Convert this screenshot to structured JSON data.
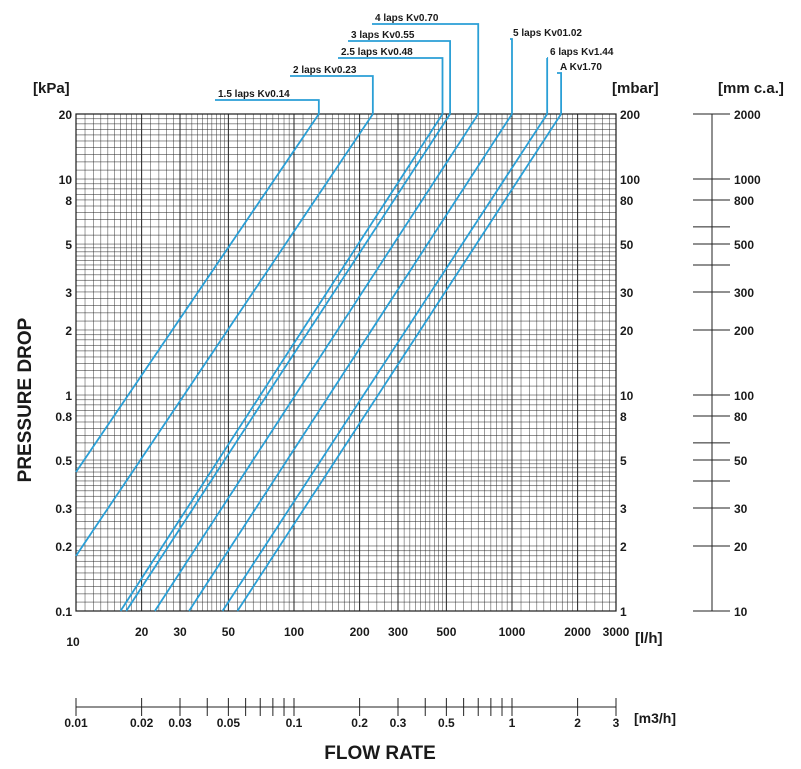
{
  "chart_data": {
    "type": "line",
    "x_scale": "log",
    "y_scale": "log",
    "xlim": [
      10,
      3000
    ],
    "ylim": [
      0.1,
      20
    ],
    "ylabel": "PRESSURE DROP",
    "xlabel": "FLOW RATE",
    "y_unit_left": "[kPa]",
    "y_unit_mid": "[mbar]",
    "y_unit_right": "[mm c.a.]",
    "x_unit": "[l/h]",
    "x2_unit": "[m3/h]",
    "grid": true,
    "line_color": "#2a9fd6",
    "x_ticks": [
      {
        "v": 10,
        "label": "10"
      },
      {
        "v": 20,
        "label": "20"
      },
      {
        "v": 30,
        "label": "30"
      },
      {
        "v": 50,
        "label": "50"
      },
      {
        "v": 100,
        "label": "100"
      },
      {
        "v": 200,
        "label": "200"
      },
      {
        "v": 300,
        "label": "300"
      },
      {
        "v": 500,
        "label": "500"
      },
      {
        "v": 1000,
        "label": "1000"
      },
      {
        "v": 2000,
        "label": "2000"
      },
      {
        "v": 3000,
        "label": "3000"
      }
    ],
    "y_ticks_kpa": [
      {
        "v": 20,
        "label": "20"
      },
      {
        "v": 10,
        "label": "10"
      },
      {
        "v": 8,
        "label": "8"
      },
      {
        "v": 5,
        "label": "5"
      },
      {
        "v": 3,
        "label": "3"
      },
      {
        "v": 2,
        "label": "2"
      },
      {
        "v": 1,
        "label": "1"
      },
      {
        "v": 0.8,
        "label": "0.8"
      },
      {
        "v": 0.5,
        "label": "0.5"
      },
      {
        "v": 0.3,
        "label": "0.3"
      },
      {
        "v": 0.2,
        "label": "0.2"
      },
      {
        "v": 0.1,
        "label": "0.1"
      }
    ],
    "y_ticks_mbar": [
      {
        "v": 20,
        "label": "200"
      },
      {
        "v": 10,
        "label": "100"
      },
      {
        "v": 8,
        "label": "80"
      },
      {
        "v": 5,
        "label": "50"
      },
      {
        "v": 3,
        "label": "30"
      },
      {
        "v": 2,
        "label": "20"
      },
      {
        "v": 1,
        "label": "10"
      },
      {
        "v": 0.8,
        "label": "8"
      },
      {
        "v": 0.5,
        "label": "5"
      },
      {
        "v": 0.3,
        "label": "3"
      },
      {
        "v": 0.2,
        "label": "2"
      },
      {
        "v": 0.1,
        "label": "1"
      }
    ],
    "y_ticks_mmca": [
      {
        "v": 20,
        "label": "2000"
      },
      {
        "v": 10,
        "label": "1000"
      },
      {
        "v": 8,
        "label": "800"
      },
      {
        "v": 5,
        "label": "500"
      },
      {
        "v": 3,
        "label": "300"
      },
      {
        "v": 2,
        "label": "200"
      },
      {
        "v": 1,
        "label": "100"
      },
      {
        "v": 0.8,
        "label": "80"
      },
      {
        "v": 0.5,
        "label": "50"
      },
      {
        "v": 0.3,
        "label": "30"
      },
      {
        "v": 0.2,
        "label": "20"
      },
      {
        "v": 0.1,
        "label": "10"
      }
    ],
    "x2_ticks": [
      {
        "v": 0.01,
        "label": "0.01"
      },
      {
        "v": 0.02,
        "label": "0.02"
      },
      {
        "v": 0.03,
        "label": "0.03"
      },
      {
        "v": 0.05,
        "label": "0.05"
      },
      {
        "v": 0.1,
        "label": "0.1"
      },
      {
        "v": 0.2,
        "label": "0.2"
      },
      {
        "v": 0.3,
        "label": "0.3"
      },
      {
        "v": 0.5,
        "label": "0.5"
      },
      {
        "v": 1,
        "label": "1"
      },
      {
        "v": 2,
        "label": "2"
      },
      {
        "v": 3,
        "label": "3"
      }
    ],
    "series": [
      {
        "name": "1.5 laps  Kv0.14",
        "points": [
          [
            10,
            0.44
          ],
          [
            130,
            20
          ]
        ]
      },
      {
        "name": "2 laps Kv0.23",
        "points": [
          [
            10,
            0.18
          ],
          [
            230,
            20
          ]
        ]
      },
      {
        "name": "2.5 laps  Kv0.48",
        "points": [
          [
            16,
            0.1
          ],
          [
            480,
            20
          ]
        ]
      },
      {
        "name": "3 laps Kv0.55",
        "points": [
          [
            17,
            0.1
          ],
          [
            520,
            20
          ]
        ]
      },
      {
        "name": "4 laps  Kv0.70",
        "points": [
          [
            23,
            0.1
          ],
          [
            700,
            20
          ]
        ]
      },
      {
        "name": "5 laps Kv01.02",
        "points": [
          [
            33,
            0.1
          ],
          [
            1000,
            20
          ]
        ]
      },
      {
        "name": "6 laps Kv1.44",
        "points": [
          [
            47,
            0.1
          ],
          [
            1450,
            20
          ]
        ]
      },
      {
        "name": "A Kv1.70",
        "points": [
          [
            55,
            0.1
          ],
          [
            1680,
            20
          ]
        ]
      }
    ]
  }
}
